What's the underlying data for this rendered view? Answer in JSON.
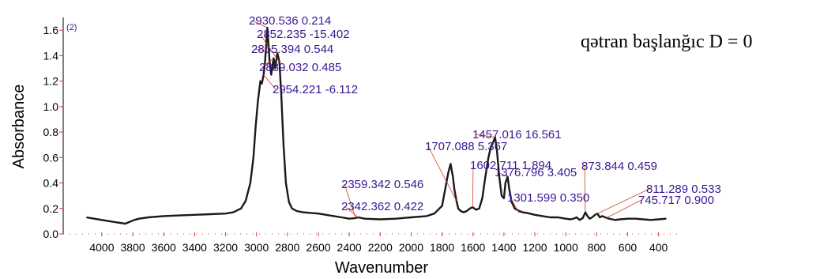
{
  "chart_data": {
    "type": "line",
    "title": "qətran  başlanğıc D = 0",
    "xlabel": "Wavenumber",
    "ylabel": "Absorbance",
    "corner_label": "(2)",
    "xlim": [
      4250,
      250
    ],
    "ylim": [
      0,
      1.7
    ],
    "x_reversed": true,
    "x_ticks": [
      4000,
      3800,
      3600,
      3400,
      3200,
      3000,
      2800,
      2600,
      2400,
      2200,
      2000,
      1800,
      1600,
      1400,
      1200,
      1000,
      800,
      600,
      400
    ],
    "y_ticks": [
      "0.0",
      "0.2",
      "0.4",
      "0.6",
      "0.8",
      "1.0",
      "1.2",
      "1.4",
      "1.6"
    ],
    "grid": false,
    "colors": {
      "line": "#1a1a1a",
      "annotation": "#3a1890",
      "leader": "#d04020",
      "axis_tick": "#e03a2a"
    },
    "series": [
      {
        "x": [
          4100,
          4050,
          4000,
          3950,
          3900,
          3870,
          3850,
          3830,
          3810,
          3790,
          3760,
          3700,
          3600,
          3500,
          3400,
          3300,
          3200,
          3150,
          3100,
          3070,
          3040,
          3020,
          3005,
          2990,
          2975,
          2965,
          2954,
          2945,
          2930,
          2915,
          2905,
          2889,
          2880,
          2865,
          2852,
          2840,
          2825,
          2810,
          2790,
          2770,
          2740,
          2700,
          2650,
          2600,
          2550,
          2500,
          2450,
          2400,
          2359,
          2342,
          2300,
          2200,
          2100,
          2000,
          1900,
          1850,
          1800,
          1780,
          1760,
          1745,
          1730,
          1720,
          1707,
          1695,
          1680,
          1660,
          1640,
          1620,
          1602,
          1580,
          1560,
          1540,
          1520,
          1500,
          1485,
          1470,
          1457,
          1445,
          1430,
          1415,
          1400,
          1390,
          1376,
          1365,
          1350,
          1330,
          1301,
          1280,
          1250,
          1200,
          1150,
          1100,
          1050,
          1000,
          970,
          950,
          930,
          910,
          890,
          873,
          860,
          845,
          830,
          811,
          795,
          780,
          765,
          745,
          720,
          700,
          680,
          650,
          600,
          550,
          500,
          450,
          400,
          350
        ],
        "y": [
          0.13,
          0.12,
          0.11,
          0.1,
          0.09,
          0.085,
          0.08,
          0.09,
          0.1,
          0.11,
          0.12,
          0.13,
          0.14,
          0.145,
          0.15,
          0.155,
          0.16,
          0.17,
          0.2,
          0.26,
          0.4,
          0.6,
          0.85,
          1.05,
          1.2,
          1.18,
          1.25,
          1.35,
          1.62,
          1.35,
          1.25,
          1.38,
          1.3,
          1.42,
          1.35,
          1.1,
          0.7,
          0.4,
          0.25,
          0.2,
          0.18,
          0.17,
          0.165,
          0.16,
          0.15,
          0.14,
          0.13,
          0.12,
          0.125,
          0.13,
          0.12,
          0.115,
          0.12,
          0.13,
          0.14,
          0.16,
          0.22,
          0.35,
          0.48,
          0.55,
          0.45,
          0.35,
          0.26,
          0.2,
          0.18,
          0.17,
          0.18,
          0.2,
          0.21,
          0.19,
          0.2,
          0.28,
          0.45,
          0.6,
          0.68,
          0.72,
          0.76,
          0.65,
          0.45,
          0.3,
          0.28,
          0.4,
          0.45,
          0.35,
          0.25,
          0.2,
          0.18,
          0.17,
          0.165,
          0.15,
          0.14,
          0.13,
          0.13,
          0.12,
          0.115,
          0.12,
          0.13,
          0.11,
          0.125,
          0.17,
          0.14,
          0.12,
          0.13,
          0.15,
          0.16,
          0.13,
          0.14,
          0.13,
          0.12,
          0.115,
          0.11,
          0.115,
          0.12,
          0.12,
          0.115,
          0.11,
          0.115,
          0.12
        ]
      }
    ],
    "annotations": [
      {
        "text": "2930.536  0.214",
        "x": 2930.536,
        "y": 1.62
      },
      {
        "text": "2852.235  -15.402",
        "x": 2852.235,
        "y": 1.35
      },
      {
        "text": "2865.394  0.544",
        "x": 2865.394,
        "y": 1.42
      },
      {
        "text": "2889.032  0.485",
        "x": 2889.032,
        "y": 1.38
      },
      {
        "text": "2954.221  -6.112",
        "x": 2954.221,
        "y": 1.25
      },
      {
        "text": "1457.016  16.561",
        "x": 1457.016,
        "y": 0.76
      },
      {
        "text": "1707.088  5.367",
        "x": 1707.088,
        "y": 0.26
      },
      {
        "text": "1602.711  1.894",
        "x": 1602.711,
        "y": 0.21
      },
      {
        "text": "1376.796  3.405",
        "x": 1376.796,
        "y": 0.45
      },
      {
        "text": "873.844  0.459",
        "x": 873.844,
        "y": 0.17
      },
      {
        "text": "2359.342  0.546",
        "x": 2359.342,
        "y": 0.125
      },
      {
        "text": "811.289  0.533",
        "x": 811.289,
        "y": 0.15
      },
      {
        "text": "2342.362  0.422",
        "x": 2342.362,
        "y": 0.13
      },
      {
        "text": "1301.599  0.350",
        "x": 1301.599,
        "y": 0.165
      },
      {
        "text": "745.717  0.900",
        "x": 745.717,
        "y": 0.12
      }
    ]
  }
}
